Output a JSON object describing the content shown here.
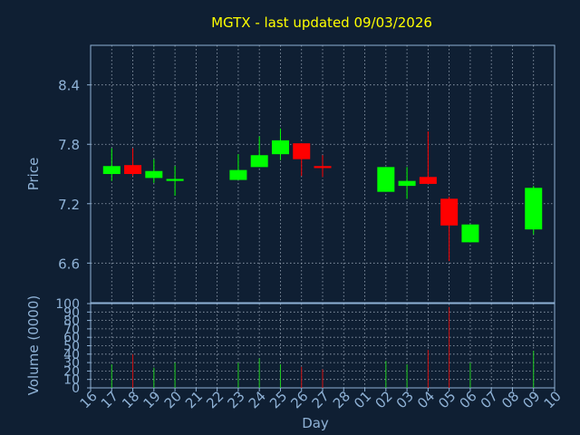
{
  "chart_data": {
    "type": "candlestick",
    "title": "MGTX - last updated 09/03/2026",
    "xlabel": "Day",
    "price_panel": {
      "ylabel": "Price",
      "ylim": [
        6.2,
        8.8
      ],
      "yticks": [
        6.6,
        7.2,
        7.8,
        8.4
      ],
      "grid": true
    },
    "volume_panel": {
      "ylabel": "Volume (0000)",
      "ylim": [
        0,
        100
      ],
      "yticks": [
        0,
        10,
        20,
        30,
        40,
        50,
        60,
        70,
        80,
        90,
        100
      ],
      "grid": true
    },
    "x_ticks": [
      "16",
      "17",
      "18",
      "19",
      "20",
      "21",
      "22",
      "23",
      "24",
      "25",
      "26",
      "27",
      "28",
      "01",
      "02",
      "03",
      "04",
      "05",
      "06",
      "07",
      "08",
      "09",
      "10"
    ],
    "candles": [
      {
        "day": "17",
        "open": 7.5,
        "close": 7.58,
        "high": 7.76,
        "low": 7.43,
        "volume": 28
      },
      {
        "day": "18",
        "open": 7.59,
        "close": 7.5,
        "high": 7.76,
        "low": 7.48,
        "volume": 40
      },
      {
        "day": "19",
        "open": 7.46,
        "close": 7.53,
        "high": 7.65,
        "low": 7.41,
        "volume": 24
      },
      {
        "day": "20",
        "open": 7.43,
        "close": 7.45,
        "high": 7.58,
        "low": 7.28,
        "volume": 30
      },
      {
        "day": "23",
        "open": 7.44,
        "close": 7.54,
        "high": 7.7,
        "low": 7.44,
        "volume": 30
      },
      {
        "day": "24",
        "open": 7.57,
        "close": 7.69,
        "high": 7.88,
        "low": 7.57,
        "volume": 35
      },
      {
        "day": "25",
        "open": 7.7,
        "close": 7.84,
        "high": 7.96,
        "low": 7.64,
        "volume": 28
      },
      {
        "day": "26",
        "open": 7.81,
        "close": 7.65,
        "high": 7.81,
        "low": 7.48,
        "volume": 25
      },
      {
        "day": "27",
        "open": 7.58,
        "close": 7.56,
        "high": 7.69,
        "low": 7.47,
        "volume": 22
      },
      {
        "day": "02",
        "open": 7.32,
        "close": 7.57,
        "high": 7.57,
        "low": 7.32,
        "volume": 32
      },
      {
        "day": "03",
        "open": 7.38,
        "close": 7.43,
        "high": 7.57,
        "low": 7.25,
        "volume": 28
      },
      {
        "day": "04",
        "open": 7.47,
        "close": 7.4,
        "high": 7.93,
        "low": 7.4,
        "volume": 45
      },
      {
        "day": "05",
        "open": 7.25,
        "close": 6.98,
        "high": 7.27,
        "low": 6.62,
        "volume": 96
      },
      {
        "day": "06",
        "open": 6.81,
        "close": 6.99,
        "high": 6.99,
        "low": 6.81,
        "volume": 30
      },
      {
        "day": "09",
        "open": 6.94,
        "close": 7.36,
        "high": 7.38,
        "low": 6.89,
        "volume": 44
      }
    ],
    "colors": {
      "background": "#0f1f33",
      "text": "#8fb2d6",
      "title": "#ffff00",
      "axes": "#8fb2d6",
      "grid": "#c8d4e2",
      "up": "#00ff00",
      "down": "#ff0000",
      "up_volume": "#1fcc1f",
      "down_volume": "#d01010"
    }
  }
}
